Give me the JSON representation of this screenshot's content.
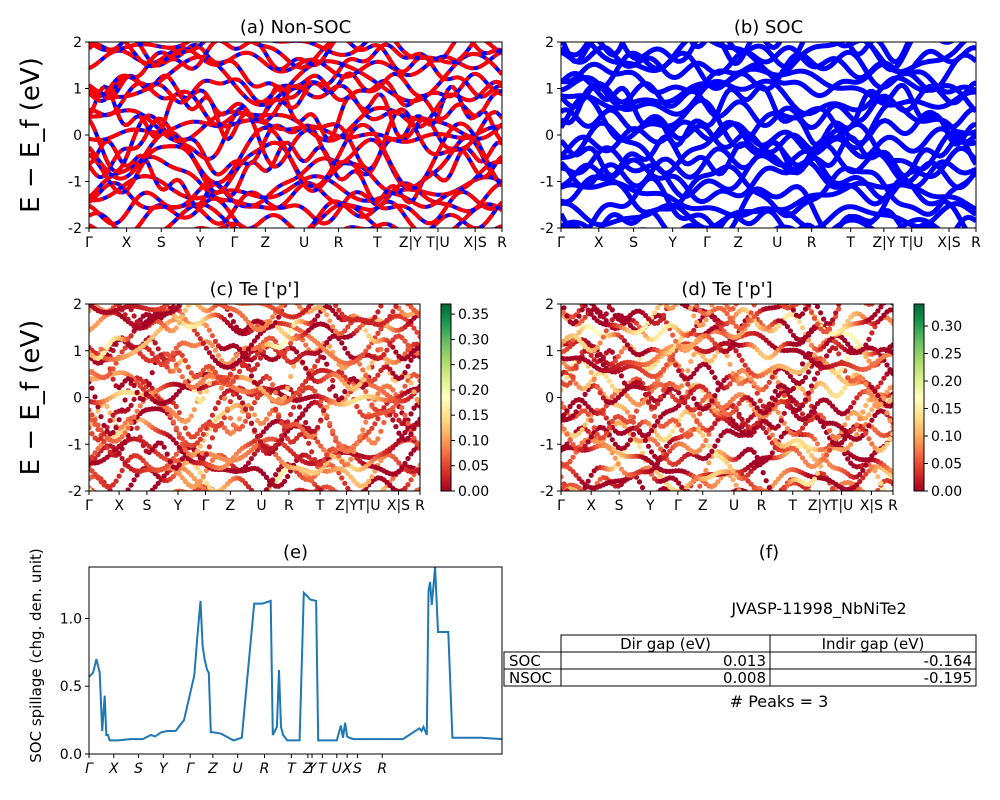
{
  "chart_data": [
    {
      "id": "a",
      "type": "line",
      "title": "(a) Non-SOC",
      "ylabel": "E − E_f (eV)",
      "ylim": [
        -2,
        2
      ],
      "yticks": [
        -2,
        -1,
        0,
        1,
        2
      ],
      "xticks": [
        "Γ",
        "X",
        "S",
        "Y",
        "Γ",
        "Z",
        "U",
        "R",
        "T",
        "Z|Y",
        "T|U",
        "X|S",
        "R"
      ],
      "series": [
        {
          "style": "dashed",
          "colors": [
            "#ff0000",
            "#0000ff"
          ]
        }
      ]
    },
    {
      "id": "b",
      "type": "line",
      "title": "(b) SOC",
      "ylim": [
        -2,
        2
      ],
      "yticks": [
        -2,
        -1,
        0,
        1,
        2
      ],
      "xticks": [
        "Γ",
        "X",
        "S",
        "Y",
        "Γ",
        "Z",
        "U",
        "R",
        "T",
        "Z|Y",
        "T|U",
        "X|S",
        "R"
      ],
      "series": [
        {
          "style": "solid",
          "colors": [
            "#0000ff"
          ]
        }
      ]
    },
    {
      "id": "c",
      "type": "scatter",
      "title": "(c)  Te ['p']",
      "ylabel": "E − E_f (eV)",
      "ylim": [
        -2,
        2
      ],
      "yticks": [
        -2,
        -1,
        0,
        1,
        2
      ],
      "xticks": [
        "Γ",
        "X",
        "S",
        "Y",
        "Γ",
        "Z",
        "U",
        "R",
        "T",
        "Z|Y",
        "T|U",
        "X|S",
        "R"
      ],
      "colorbar": {
        "ticks": [
          "0.00",
          "0.05",
          "0.10",
          "0.15",
          "0.20",
          "0.25",
          "0.30",
          "0.35"
        ],
        "max": 0.37,
        "colormap": "RdYlGn"
      }
    },
    {
      "id": "d",
      "type": "scatter",
      "title": "(d) Te ['p']",
      "ylim": [
        -2,
        2
      ],
      "yticks": [
        -2,
        -1,
        0,
        1,
        2
      ],
      "xticks": [
        "Γ",
        "X",
        "S",
        "Y",
        "Γ",
        "Z",
        "U",
        "R",
        "T",
        "Z|Y",
        "T|U",
        "X|S",
        "R"
      ],
      "colorbar": {
        "ticks": [
          "0.00",
          "0.05",
          "0.10",
          "0.15",
          "0.20",
          "0.25",
          "0.30"
        ],
        "max": 0.34,
        "colormap": "RdYlGn"
      }
    },
    {
      "id": "e",
      "type": "line",
      "title": "(e)",
      "ylabel": "SOC spillage (chg. den. unit)",
      "ylim": [
        0,
        1.38
      ],
      "yticks": [
        "0.0",
        "0.5",
        "1.0"
      ],
      "xticks": [
        "Γ",
        "X",
        "S",
        "Y",
        "Γ",
        "Z",
        "U",
        "R",
        "T",
        "Z",
        "Y",
        "T",
        "U",
        "X",
        "S",
        "R"
      ],
      "xlim": [
        0,
        1
      ],
      "series": [
        {
          "color": "#1f77b4",
          "x": [
            0,
            0.01,
            0.018,
            0.026,
            0.032,
            0.038,
            0.042,
            0.046,
            0.05,
            0.056,
            0.07,
            0.1,
            0.13,
            0.15,
            0.16,
            0.175,
            0.19,
            0.21,
            0.23,
            0.255,
            0.262,
            0.27,
            0.275,
            0.28,
            0.286,
            0.29,
            0.295,
            0.3,
            0.32,
            0.35,
            0.37,
            0.4,
            0.405,
            0.42,
            0.44,
            0.445,
            0.455,
            0.46,
            0.465,
            0.47,
            0.48,
            0.5,
            0.51,
            0.52,
            0.53,
            0.535,
            0.55,
            0.555,
            0.6,
            0.61,
            0.615,
            0.62,
            0.625,
            0.63,
            0.64,
            0.7,
            0.72,
            0.76,
            0.8,
            0.805,
            0.81,
            0.818,
            0.822,
            0.826,
            0.83,
            0.838,
            0.845,
            0.85,
            0.87,
            0.88,
            0.9,
            0.95,
            1.0
          ],
          "y": [
            0.57,
            0.6,
            0.7,
            0.6,
            0.17,
            0.43,
            0.14,
            0.14,
            0.1,
            0.1,
            0.1,
            0.11,
            0.11,
            0.14,
            0.13,
            0.16,
            0.17,
            0.17,
            0.25,
            0.58,
            0.85,
            1.13,
            0.8,
            0.7,
            0.62,
            0.6,
            0.16,
            0.16,
            0.15,
            0.1,
            0.12,
            1.11,
            1.11,
            1.11,
            1.13,
            0.14,
            0.2,
            0.62,
            0.2,
            0.14,
            0.1,
            0.1,
            0.1,
            1.19,
            1.16,
            1.14,
            1.13,
            0.1,
            0.1,
            0.21,
            0.12,
            0.23,
            0.13,
            0.12,
            0.11,
            0.11,
            0.11,
            0.11,
            0.19,
            0.17,
            0.2,
            0.14,
            1.2,
            1.27,
            1.1,
            1.38,
            0.9,
            0.9,
            0.9,
            0.12,
            0.12,
            0.12,
            0.11
          ]
        }
      ]
    }
  ],
  "panel_f": {
    "title": "(f)",
    "name": "JVASP-11998_NbNiTe2",
    "table": {
      "columns": [
        "",
        "Dir gap (eV)",
        "Indir gap (eV)"
      ],
      "rows": [
        {
          "label": "SOC",
          "dir": "0.013",
          "indir": "-0.164"
        },
        {
          "label": "NSOC",
          "dir": "0.008",
          "indir": "-0.195"
        }
      ]
    },
    "peaks": "# Peaks = 3"
  }
}
